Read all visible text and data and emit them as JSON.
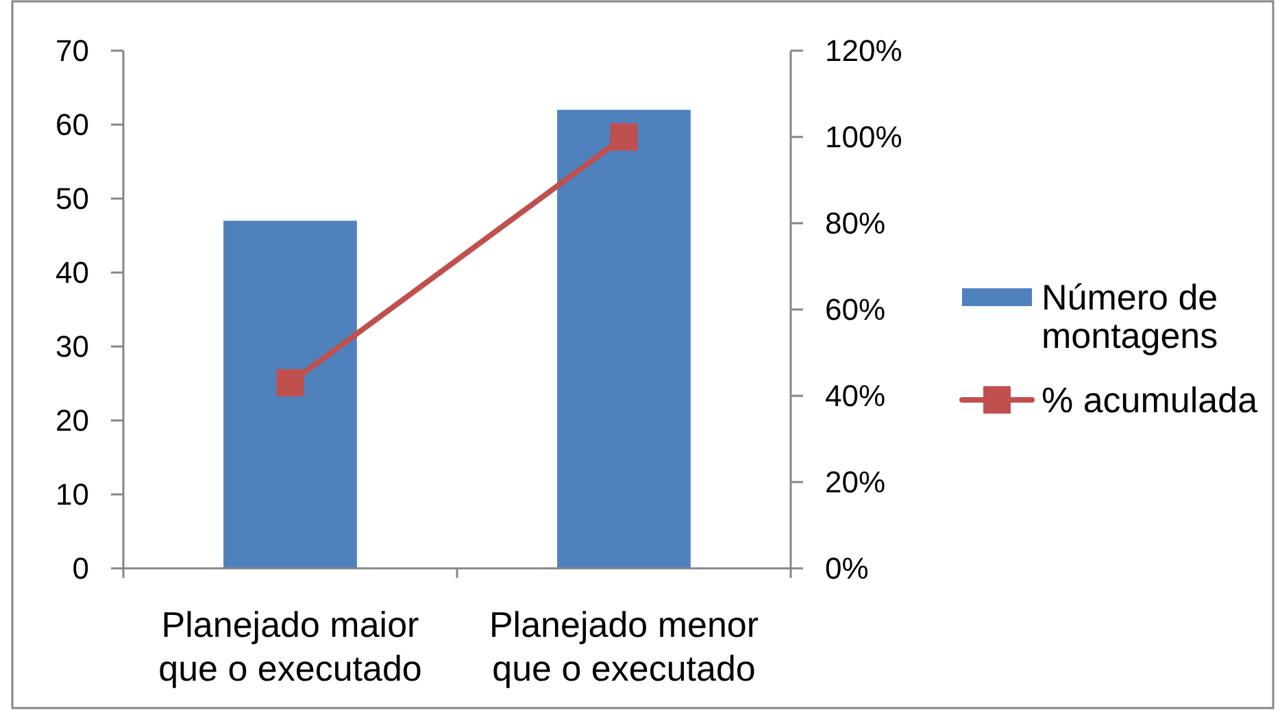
{
  "chart_data": {
    "type": "bar",
    "categories": [
      "Planejado maior que o executado",
      "Planejado menor que o executado"
    ],
    "series": [
      {
        "name": "Número de montagens",
        "color": "#4f81bd",
        "values": [
          47,
          62
        ]
      },
      {
        "name": "% acumulada",
        "type": "line",
        "axis": "y2",
        "color": "#c0504d",
        "values": [
          43,
          100
        ]
      }
    ],
    "ylim": [
      0,
      70
    ],
    "yticks": [
      0,
      10,
      20,
      30,
      40,
      50,
      60,
      70
    ],
    "y2lim": [
      0,
      120
    ],
    "y2ticks": [
      {
        "value": 0,
        "label": "0%"
      },
      {
        "value": 20,
        "label": "20%"
      },
      {
        "value": 40,
        "label": "40%"
      },
      {
        "value": 60,
        "label": "60%"
      },
      {
        "value": 80,
        "label": "80%"
      },
      {
        "value": 100,
        "label": "100%"
      },
      {
        "value": 120,
        "label": "120%"
      }
    ],
    "legend": "right",
    "marker": "square"
  }
}
